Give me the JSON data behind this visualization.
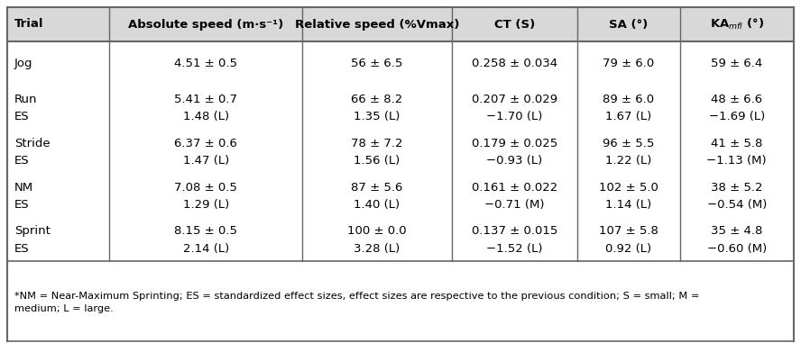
{
  "col_boundaries": [
    0.0,
    0.13,
    0.375,
    0.565,
    0.725,
    0.855,
    1.0
  ],
  "header_texts": [
    "Trial",
    "Absolute speed (m·s⁻¹)",
    "Relative speed (%Vmax)",
    "CT (S)",
    "SA (°)",
    "KA$_{mfl}$ (°)"
  ],
  "groups": [
    {
      "data": [
        "Jog",
        "4.51 ± 0.5",
        "56 ± 6.5",
        "0.258 ± 0.034",
        "79 ± 6.0",
        "59 ± 6.4"
      ],
      "es": null
    },
    {
      "data": [
        "Run",
        "5.41 ± 0.7",
        "66 ± 8.2",
        "0.207 ± 0.029",
        "89 ± 6.0",
        "48 ± 6.6"
      ],
      "es": [
        "ES",
        "1.48 (L)",
        "1.35 (L)",
        "−1.70 (L)",
        "1.67 (L)",
        "−1.69 (L)"
      ]
    },
    {
      "data": [
        "Stride",
        "6.37 ± 0.6",
        "78 ± 7.2",
        "0.179 ± 0.025",
        "96 ± 5.5",
        "41 ± 5.8"
      ],
      "es": [
        "ES",
        "1.47 (L)",
        "1.56 (L)",
        "−0.93 (L)",
        "1.22 (L)",
        "−1.13 (M)"
      ]
    },
    {
      "data": [
        "NM",
        "7.08 ± 0.5",
        "87 ± 5.6",
        "0.161 ± 0.022",
        "102 ± 5.0",
        "38 ± 5.2"
      ],
      "es": [
        "ES",
        "1.29 (L)",
        "1.40 (L)",
        "−0.71 (M)",
        "1.14 (L)",
        "−0.54 (M)"
      ]
    },
    {
      "data": [
        "Sprint",
        "8.15 ± 0.5",
        "100 ± 0.0",
        "0.137 ± 0.015",
        "107 ± 5.8",
        "35 ± 4.8"
      ],
      "es": [
        "ES",
        "2.14 (L)",
        "3.28 (L)",
        "−1.52 (L)",
        "0.92 (L)",
        "−0.60 (M)"
      ]
    }
  ],
  "footnote": "*NM = Near-Maximum Sprinting; ES = standardized effect sizes, effect sizes are respective to the previous condition; S = small; M =\nmedium; L = large.",
  "header_bg": "#d8d8d8",
  "body_bg": "#ffffff",
  "border_color": "#666666",
  "text_color": "#000000",
  "data_fontsize": 9.5,
  "header_fontsize": 9.5,
  "footnote_fontsize": 8.2
}
